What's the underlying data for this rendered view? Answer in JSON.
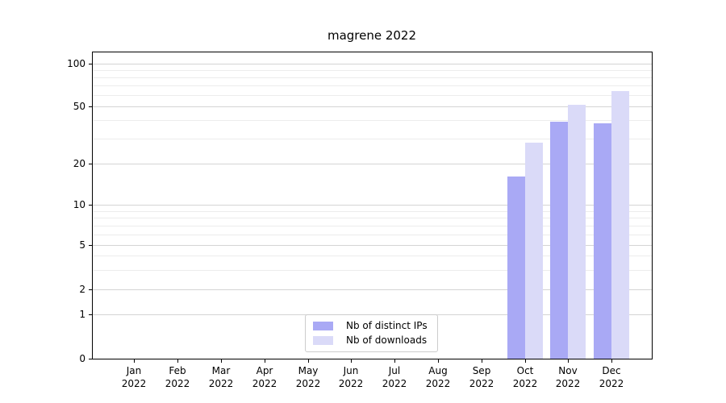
{
  "title": "magrene 2022",
  "chart_data": {
    "type": "bar",
    "title": "magrene 2022",
    "categories": [
      "Jan",
      "Feb",
      "Mar",
      "Apr",
      "May",
      "Jun",
      "Jul",
      "Aug",
      "Sep",
      "Oct",
      "Nov",
      "Dec"
    ],
    "category_year": "2022",
    "series": [
      {
        "name": "Nb of distinct IPs",
        "color": "#a9a9f5",
        "values": [
          null,
          null,
          null,
          null,
          null,
          null,
          null,
          null,
          null,
          16,
          39,
          38
        ]
      },
      {
        "name": "Nb of downloads",
        "color": "#dadaf8",
        "values": [
          null,
          null,
          null,
          null,
          null,
          null,
          null,
          null,
          null,
          28,
          51,
          64
        ]
      }
    ],
    "xlabel": "",
    "ylabel": "",
    "yscale": "symlog",
    "ylim": [
      0,
      115
    ],
    "yticks_major": [
      0,
      1,
      2,
      5,
      10,
      20,
      50,
      100
    ],
    "yticks_minor": [
      3,
      4,
      6,
      7,
      8,
      9,
      30,
      40,
      60,
      70,
      80,
      90
    ],
    "grid": "horizontal",
    "legend_position": "bottom-center",
    "colors": {
      "background": "#ffffff",
      "spine": "#000000",
      "grid_major": "#d4d4d4",
      "grid_minor": "#ececec",
      "legend_border": "#cccccc"
    }
  }
}
